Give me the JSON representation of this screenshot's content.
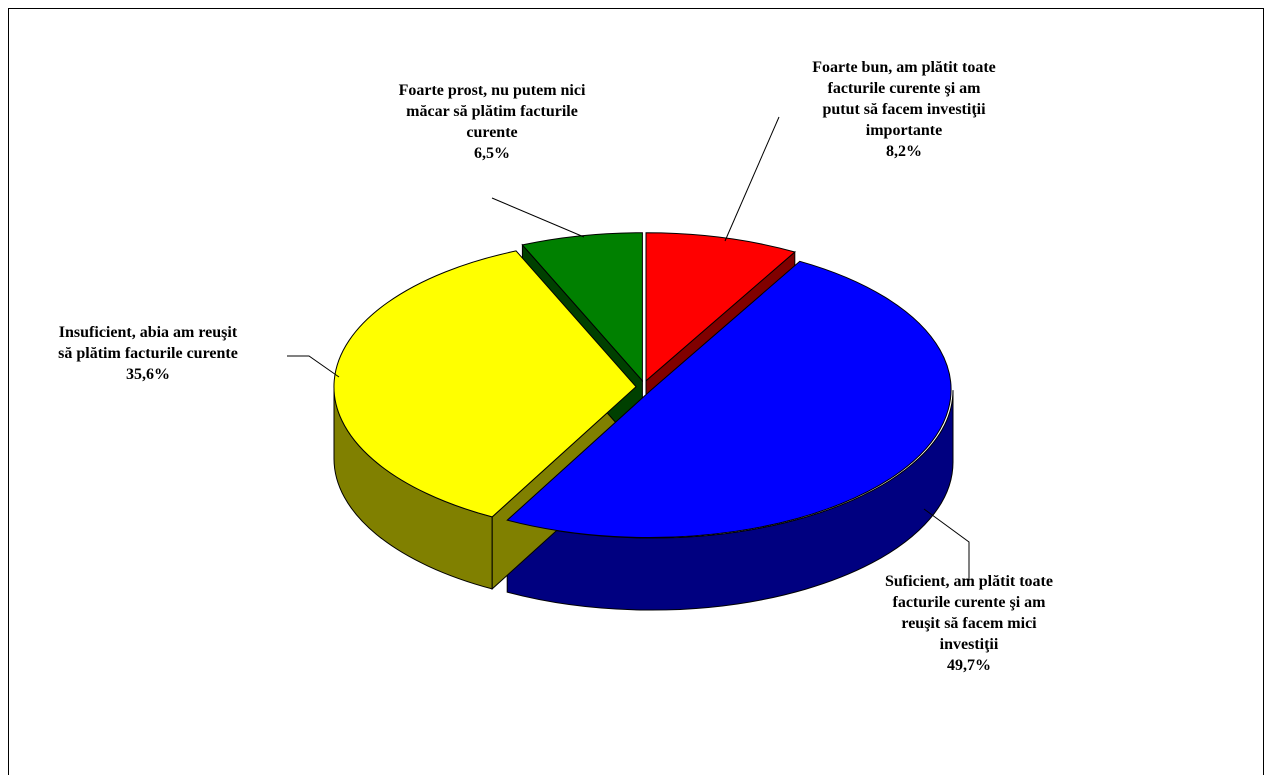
{
  "chart_data": {
    "type": "pie",
    "style": "3d-exploded",
    "title": "",
    "slices": [
      {
        "label_lines": [
          "Foarte bun, am plătit toate",
          "facturile curente şi am",
          "putut să facem investiţii",
          "importante"
        ],
        "value": 8.2,
        "value_label": "8,2%",
        "color": "#ff0000",
        "side_color": "#800000"
      },
      {
        "label_lines": [
          "Suficient, am plătit toate",
          "facturile curente şi am",
          "reuşit să facem mici",
          "investiţii"
        ],
        "value": 49.7,
        "value_label": "49,7%",
        "color": "#0000ff",
        "side_color": "#000080"
      },
      {
        "label_lines": [
          "Insuficient, abia am reuşit",
          "să plătim facturile curente"
        ],
        "value": 35.6,
        "value_label": "35,6%",
        "color": "#ffff00",
        "side_color": "#808000"
      },
      {
        "label_lines": [
          "Foarte prost, nu putem nici",
          "măcar să plătim facturile",
          "curente"
        ],
        "value": 6.5,
        "value_label": "6,5%",
        "color": "#008000",
        "side_color": "#004000"
      }
    ]
  }
}
